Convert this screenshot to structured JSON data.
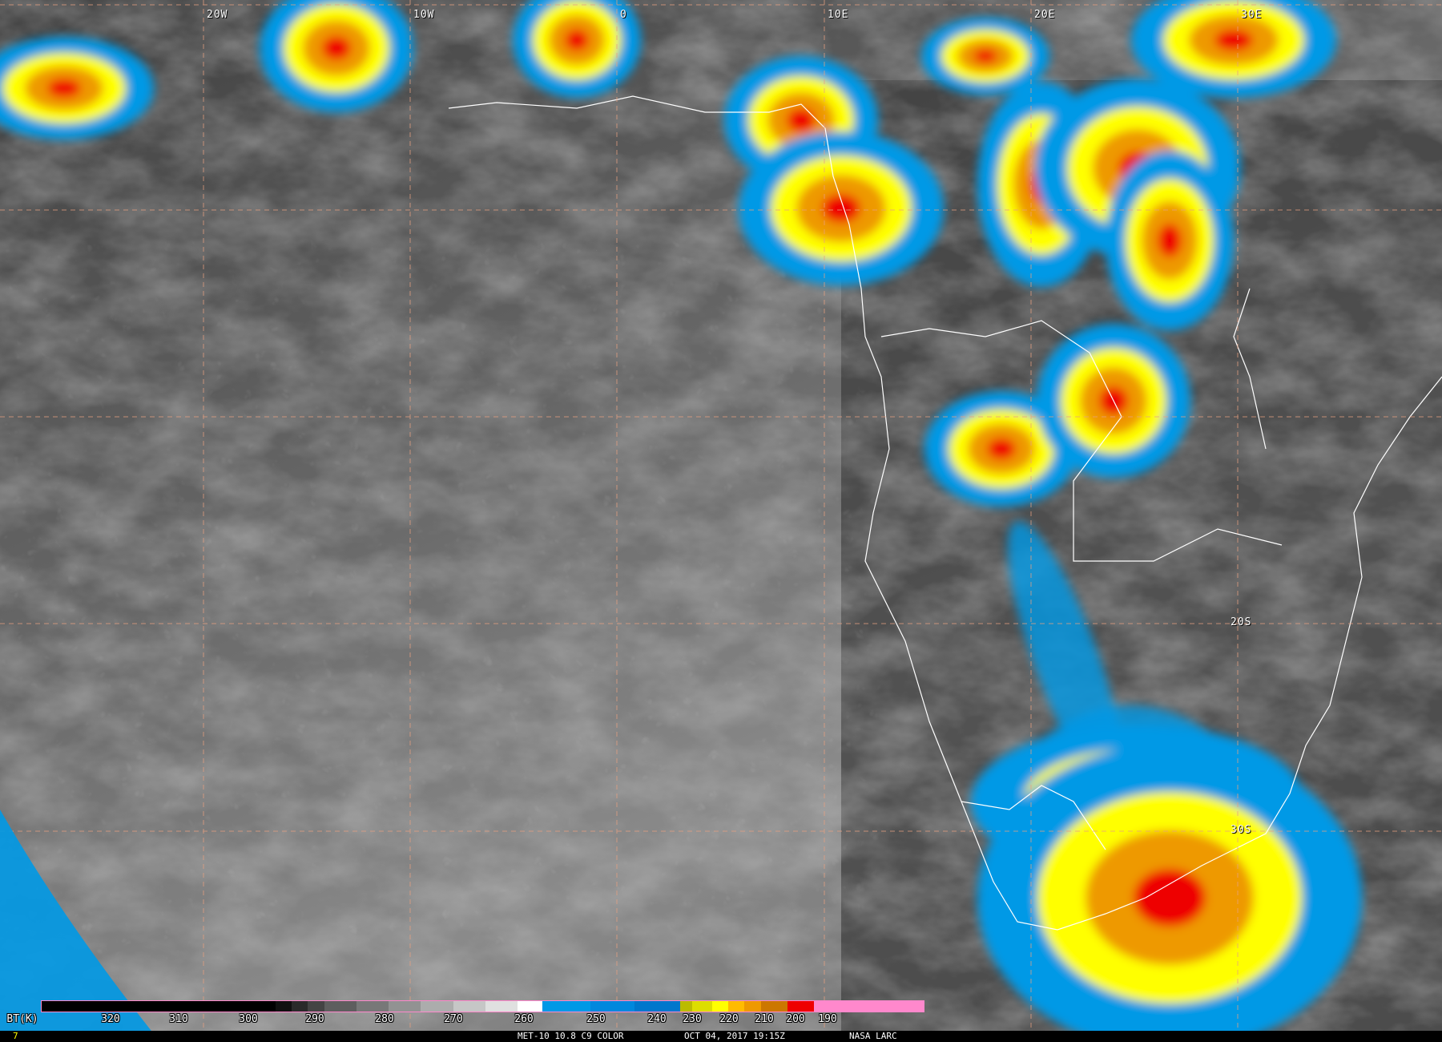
{
  "map": {
    "lon_labels": [
      "20W",
      "10W",
      "0",
      "10E",
      "20E",
      "30E"
    ],
    "lat_labels": [
      "20S",
      "30S"
    ],
    "gridline_color": "#e8a080",
    "coastline_color": "#ffffff"
  },
  "colorbar": {
    "unit_label": "BT(K)",
    "ticks": [
      "320",
      "310",
      "300",
      "290",
      "280",
      "270",
      "260",
      "250",
      "240",
      "230",
      "220",
      "210",
      "200",
      "190"
    ],
    "colors": [
      "#000000",
      "#101010",
      "#2a2a2a",
      "#444444",
      "#5e5e5e",
      "#787878",
      "#929292",
      "#acacac",
      "#c6c6c6",
      "#e0e0e0",
      "#ffffff",
      "#0099e6",
      "#0088dd",
      "#0077cc",
      "#bbbb00",
      "#dddd00",
      "#ffff00",
      "#ffbb00",
      "#ee9900",
      "#cc7700",
      "#ee0000",
      "#ff88cc"
    ]
  },
  "footer": {
    "frame_number": "7",
    "product": "MET-10 10.8 C9 COLOR",
    "datetime": "OCT 04, 2017 19:15Z",
    "credit": "NASA LARC"
  }
}
